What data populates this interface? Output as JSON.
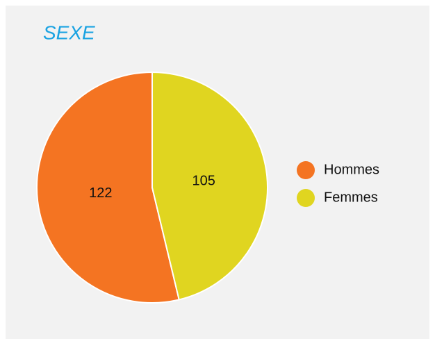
{
  "chart_data": {
    "type": "pie",
    "title": "SEXE",
    "categories": [
      "Hommes",
      "Femmes"
    ],
    "values": [
      122,
      105
    ],
    "colors": [
      "#f47422",
      "#e0d520"
    ],
    "legend": "right"
  }
}
